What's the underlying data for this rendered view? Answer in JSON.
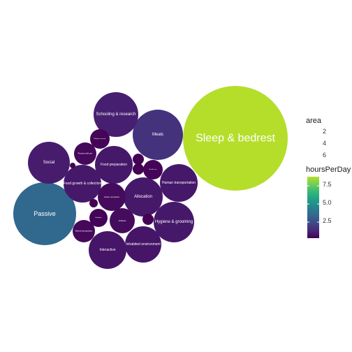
{
  "chart_data": {
    "type": "bubble",
    "grid": false,
    "legend_placement": "right",
    "colorscale": "viridis",
    "color_range": [
      0.3,
      9.6
    ],
    "bubbles": [
      {
        "label": "Sleep & bedrest",
        "hoursPerDay": 9.6
      },
      {
        "label": "Passive",
        "hoursPerDay": 3.8
      },
      {
        "label": "Meals",
        "hoursPerDay": 1.8
      },
      {
        "label": "Schooling & research",
        "hoursPerDay": 1.2
      },
      {
        "label": "Social",
        "hoursPerDay": 1.1
      },
      {
        "label": "Food preparation",
        "hoursPerDay": 1.0
      },
      {
        "label": "Food growth & collection",
        "hoursPerDay": 1.0
      },
      {
        "label": "Human transportation",
        "hoursPerDay": 1.0
      },
      {
        "label": "Allocation",
        "hoursPerDay": 1.0
      },
      {
        "label": "Hygiene & grooming",
        "hoursPerDay": 1.0
      },
      {
        "label": "Interactive",
        "hoursPerDay": 0.9
      },
      {
        "label": "Inhabited environment",
        "hoursPerDay": 0.9
      },
      {
        "label": "Active recreation",
        "hoursPerDay": 0.6
      },
      {
        "label": "Artifacts",
        "hoursPerDay": 0.6
      },
      {
        "label": "Physical child care",
        "hoursPerDay": 0.5
      },
      {
        "label": "Material transportation",
        "hoursPerDay": 0.5
      },
      {
        "label": "Buildings",
        "hoursPerDay": 0.4
      },
      {
        "label": "Religious practice",
        "hoursPerDay": 0.4
      },
      {
        "label": "Health care",
        "hoursPerDay": 0.4
      },
      {
        "label": "",
        "hoursPerDay": 0.3
      },
      {
        "label": "",
        "hoursPerDay": 0.3
      },
      {
        "label": "",
        "hoursPerDay": 0.3
      },
      {
        "label": "",
        "hoursPerDay": 0.2
      },
      {
        "label": "",
        "hoursPerDay": 0.2
      }
    ],
    "legend": {
      "size_title": "area",
      "size_labels": [
        "2",
        "4",
        "6"
      ],
      "color_title": "hoursPerDay",
      "color_labels": [
        "7.5",
        "5.0",
        "2.5"
      ]
    }
  }
}
